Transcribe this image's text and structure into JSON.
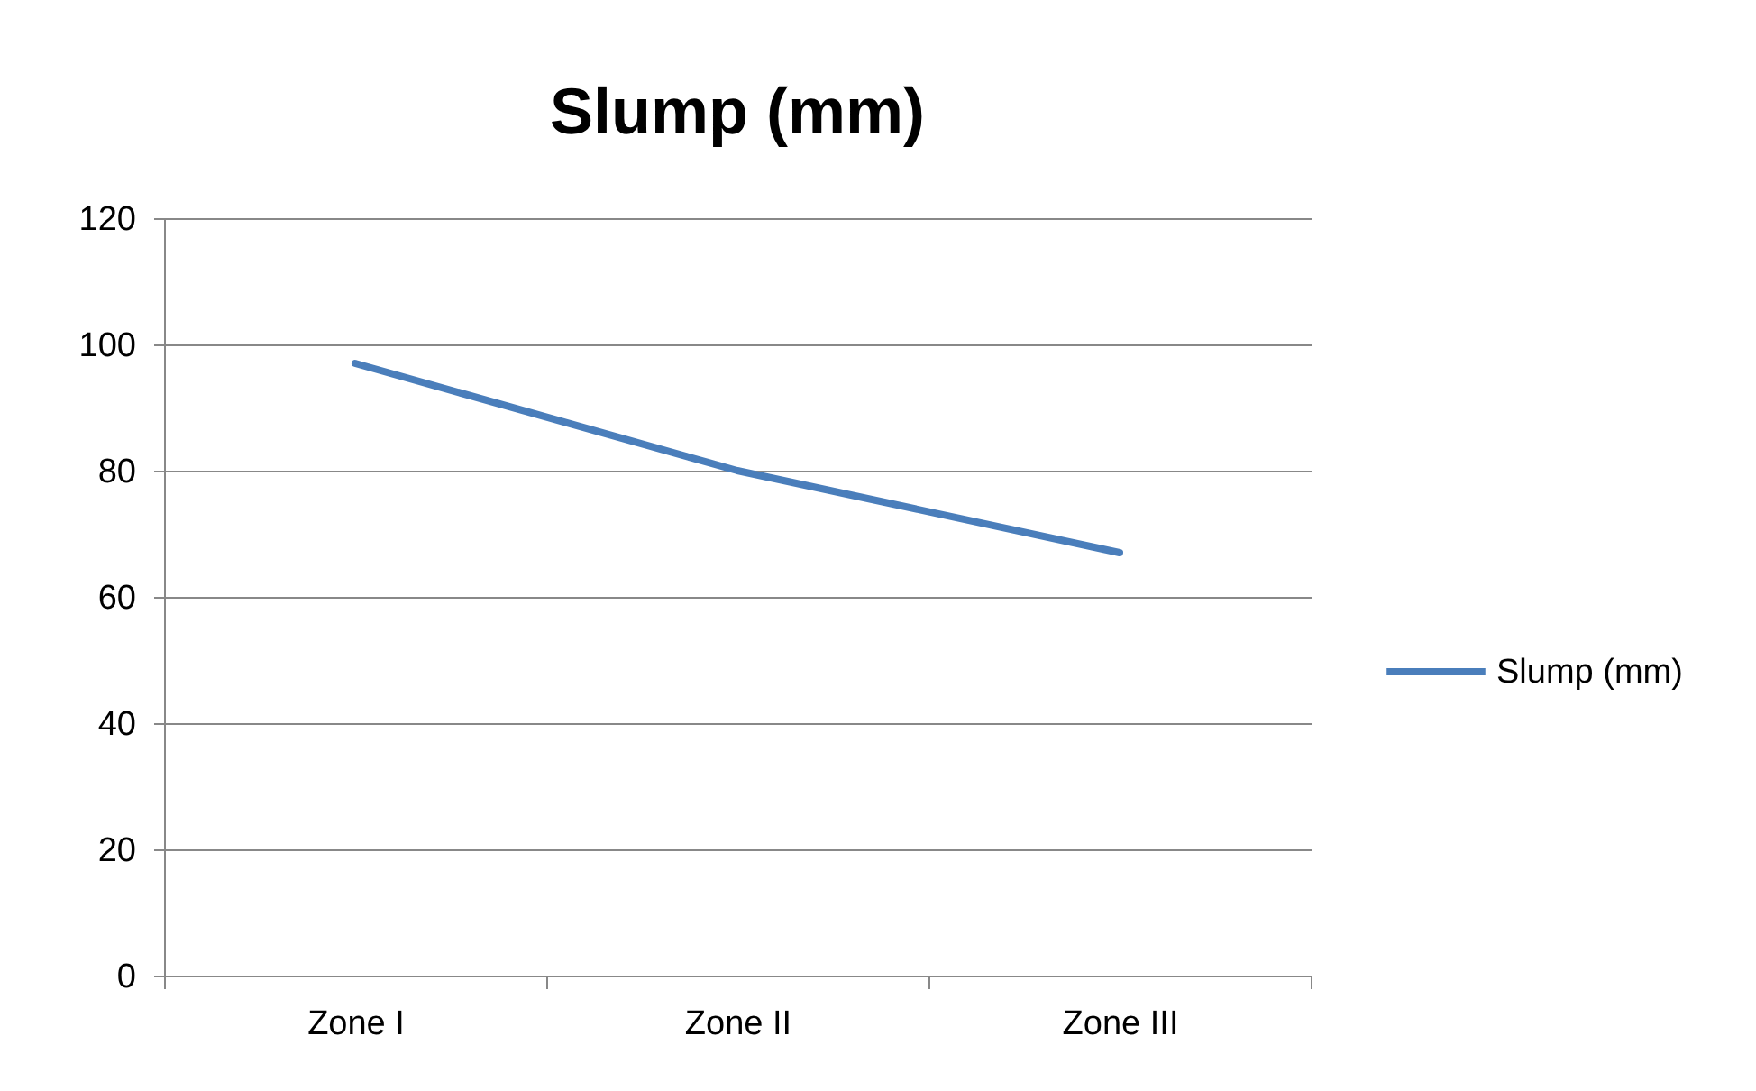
{
  "chart_data": {
    "type": "line",
    "title": "Slump (mm)",
    "categories": [
      "Zone I",
      "Zone II",
      "Zone III"
    ],
    "series": [
      {
        "name": "Slump (mm)",
        "color": "#4a7ebb",
        "values": [
          97,
          80,
          67
        ]
      }
    ],
    "ylim": [
      0,
      120
    ],
    "yticks": [
      0,
      20,
      40,
      60,
      80,
      100,
      120
    ],
    "grid": "y",
    "legend": "right",
    "marker": "none"
  }
}
